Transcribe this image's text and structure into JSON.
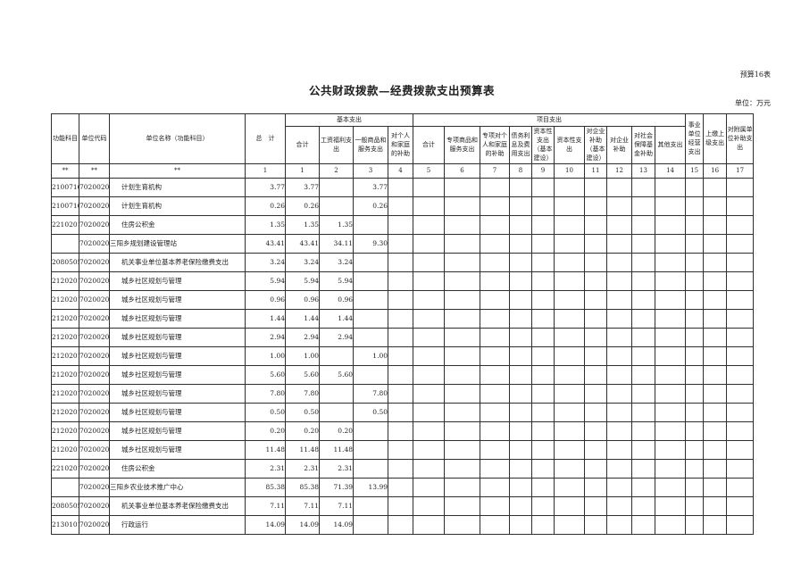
{
  "page": {
    "sheet_no": "预算16表",
    "title": "公共财政拨款—经费拨款支出预算表",
    "unit_note": "单位：万元"
  },
  "table": {
    "header": {
      "func_code": "功能科目",
      "unit_code": "单位代码",
      "unit_name": "单位名称（功能科目）",
      "total": "总　计",
      "basic_group": "基本支出",
      "basic_cols": [
        "合计",
        "工资福利支出",
        "一般商品和服务支出",
        "对个人和家庭的补助"
      ],
      "project_group": "项目支出",
      "project_cols": [
        "合计",
        "专项商品和服务支出",
        "专项对个人和家庭的补助",
        "债务利息及费用支出",
        "资本性支出（基本建设）",
        "资本性支出",
        "对企业补助（基本建设）",
        "对企业补助",
        "对社会保障基金补助",
        "其他支出"
      ],
      "business_op": "事业单位经营支出",
      "upper_pay": "上缴上级支出",
      "affiliate_subsidy": "对附属单位补助支出"
    },
    "index_row": [
      "**",
      "**",
      "**",
      "1",
      "1",
      "2",
      "3",
      "4",
      "5",
      "6",
      "7",
      "8",
      "9",
      "10",
      "11",
      "12",
      "13",
      "14",
      "15",
      "16",
      "17"
    ],
    "rows": [
      {
        "func": "2100716",
        "code": "702002004",
        "name": "计划生育机构",
        "indent": true,
        "values": [
          "3.77",
          "3.77",
          "",
          "3.77",
          "",
          "",
          "",
          "",
          "",
          "",
          "",
          "",
          "",
          "",
          "",
          "",
          "",
          ""
        ]
      },
      {
        "func": "2100716",
        "code": "702002004",
        "name": "计划生育机构",
        "indent": true,
        "values": [
          "0.26",
          "0.26",
          "",
          "0.26",
          "",
          "",
          "",
          "",
          "",
          "",
          "",
          "",
          "",
          "",
          "",
          "",
          "",
          ""
        ]
      },
      {
        "func": "2210201",
        "code": "702002004",
        "name": "住房公积金",
        "indent": true,
        "values": [
          "1.35",
          "1.35",
          "1.35",
          "",
          "",
          "",
          "",
          "",
          "",
          "",
          "",
          "",
          "",
          "",
          "",
          "",
          "",
          ""
        ]
      },
      {
        "func": "",
        "code": "702002005",
        "name": "三阳乡规划建设管理站",
        "indent": false,
        "values": [
          "43.41",
          "43.41",
          "34.11",
          "9.30",
          "",
          "",
          "",
          "",
          "",
          "",
          "",
          "",
          "",
          "",
          "",
          "",
          "",
          ""
        ]
      },
      {
        "func": "2080505",
        "code": "702002005",
        "name": "机关事业单位基本养老保险缴费支出",
        "indent": true,
        "values": [
          "3.24",
          "3.24",
          "3.24",
          "",
          "",
          "",
          "",
          "",
          "",
          "",
          "",
          "",
          "",
          "",
          "",
          "",
          "",
          ""
        ]
      },
      {
        "func": "2120201",
        "code": "702002005",
        "name": "城乡社区规划与管理",
        "indent": true,
        "values": [
          "5.94",
          "5.94",
          "5.94",
          "",
          "",
          "",
          "",
          "",
          "",
          "",
          "",
          "",
          "",
          "",
          "",
          "",
          "",
          ""
        ]
      },
      {
        "func": "2120201",
        "code": "702002005",
        "name": "城乡社区规划与管理",
        "indent": true,
        "values": [
          "0.96",
          "0.96",
          "0.96",
          "",
          "",
          "",
          "",
          "",
          "",
          "",
          "",
          "",
          "",
          "",
          "",
          "",
          "",
          ""
        ]
      },
      {
        "func": "2120201",
        "code": "702002005",
        "name": "城乡社区规划与管理",
        "indent": true,
        "values": [
          "1.44",
          "1.44",
          "1.44",
          "",
          "",
          "",
          "",
          "",
          "",
          "",
          "",
          "",
          "",
          "",
          "",
          "",
          "",
          ""
        ]
      },
      {
        "func": "2120201",
        "code": "702002005",
        "name": "城乡社区规划与管理",
        "indent": true,
        "values": [
          "2.94",
          "2.94",
          "2.94",
          "",
          "",
          "",
          "",
          "",
          "",
          "",
          "",
          "",
          "",
          "",
          "",
          "",
          "",
          ""
        ]
      },
      {
        "func": "2120201",
        "code": "702002005",
        "name": "城乡社区规划与管理",
        "indent": true,
        "values": [
          "1.00",
          "1.00",
          "",
          "1.00",
          "",
          "",
          "",
          "",
          "",
          "",
          "",
          "",
          "",
          "",
          "",
          "",
          "",
          ""
        ]
      },
      {
        "func": "2120201",
        "code": "702002005",
        "name": "城乡社区规划与管理",
        "indent": true,
        "values": [
          "5.60",
          "5.60",
          "5.60",
          "",
          "",
          "",
          "",
          "",
          "",
          "",
          "",
          "",
          "",
          "",
          "",
          "",
          "",
          ""
        ]
      },
      {
        "func": "2120201",
        "code": "702002005",
        "name": "城乡社区规划与管理",
        "indent": true,
        "values": [
          "7.80",
          "7.80",
          "",
          "7.80",
          "",
          "",
          "",
          "",
          "",
          "",
          "",
          "",
          "",
          "",
          "",
          "",
          "",
          ""
        ]
      },
      {
        "func": "2120201",
        "code": "702002005",
        "name": "城乡社区规划与管理",
        "indent": true,
        "values": [
          "0.50",
          "0.50",
          "",
          "0.50",
          "",
          "",
          "",
          "",
          "",
          "",
          "",
          "",
          "",
          "",
          "",
          "",
          "",
          ""
        ]
      },
      {
        "func": "2120201",
        "code": "702002005",
        "name": "城乡社区规划与管理",
        "indent": true,
        "values": [
          "0.20",
          "0.20",
          "0.20",
          "",
          "",
          "",
          "",
          "",
          "",
          "",
          "",
          "",
          "",
          "",
          "",
          "",
          "",
          ""
        ]
      },
      {
        "func": "2120201",
        "code": "702002005",
        "name": "城乡社区规划与管理",
        "indent": true,
        "values": [
          "11.48",
          "11.48",
          "11.48",
          "",
          "",
          "",
          "",
          "",
          "",
          "",
          "",
          "",
          "",
          "",
          "",
          "",
          "",
          ""
        ]
      },
      {
        "func": "2210201",
        "code": "702002005",
        "name": "住房公积金",
        "indent": true,
        "values": [
          "2.31",
          "2.31",
          "2.31",
          "",
          "",
          "",
          "",
          "",
          "",
          "",
          "",
          "",
          "",
          "",
          "",
          "",
          "",
          ""
        ]
      },
      {
        "func": "",
        "code": "702002006",
        "name": "三阳乡农业技术推广中心",
        "indent": false,
        "values": [
          "85.38",
          "85.38",
          "71.39",
          "13.99",
          "",
          "",
          "",
          "",
          "",
          "",
          "",
          "",
          "",
          "",
          "",
          "",
          "",
          ""
        ]
      },
      {
        "func": "2080505",
        "code": "702002006",
        "name": "机关事业单位基本养老保险缴费支出",
        "indent": true,
        "values": [
          "7.11",
          "7.11",
          "7.11",
          "",
          "",
          "",
          "",
          "",
          "",
          "",
          "",
          "",
          "",
          "",
          "",
          "",
          "",
          ""
        ]
      },
      {
        "func": "2130101",
        "code": "702002006",
        "name": "行政运行",
        "indent": true,
        "values": [
          "14.09",
          "14.09",
          "14.09",
          "",
          "",
          "",
          "",
          "",
          "",
          "",
          "",
          "",
          "",
          "",
          "",
          "",
          "",
          ""
        ]
      }
    ]
  }
}
